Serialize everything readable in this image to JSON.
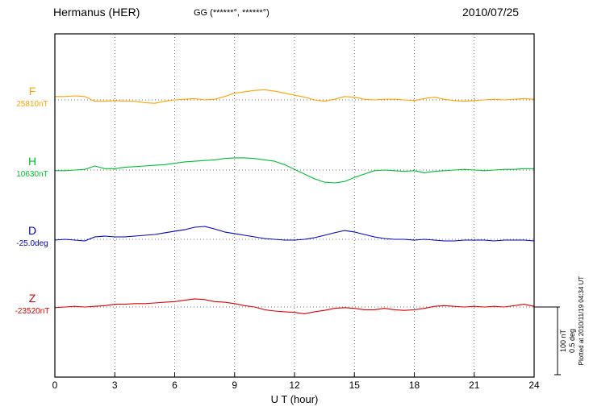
{
  "chart_data": {
    "type": "line",
    "station": "Hermanus (HER)",
    "coordinates": "GG (******°, ******°)",
    "date": "2010/07/25",
    "xlabel": "U T (hour)",
    "x_ticks": [
      0,
      3,
      6,
      9,
      12,
      15,
      18,
      21,
      24
    ],
    "x_range": [
      0,
      24
    ],
    "x_step_hours": 0.5,
    "grid": "dotted vertical gridlines at 3h ticks; dotted horizontal baseline per component",
    "legend_position": "left",
    "scale_bar": {
      "label_lines": [
        "100 nT",
        "0.5 deg"
      ],
      "nT_per_bar": 100,
      "deg_per_bar": 0.5
    },
    "plotted_at": "Plotted at 2010/11/19 04:34 UT",
    "series": [
      {
        "name": "F",
        "color": "#FFA500",
        "baseline_label": "25810nT",
        "baseline_value": 25810,
        "unit": "nT",
        "units_per_scale": 100,
        "values": [
          5,
          5,
          6,
          5,
          -2,
          -2,
          -1,
          -2,
          -2,
          -4,
          -5,
          -2,
          0,
          1,
          2,
          0,
          1,
          5,
          10,
          12,
          14,
          15,
          13,
          10,
          7,
          4,
          0,
          -2,
          1,
          5,
          4,
          1,
          0,
          1,
          1,
          0,
          -1,
          2,
          4,
          1,
          -1,
          -2,
          -1,
          0,
          1,
          0,
          1,
          2,
          1
        ]
      },
      {
        "name": "H",
        "color": "#00BE32",
        "baseline_label": "10630nT",
        "baseline_value": 10630,
        "unit": "nT",
        "units_per_scale": 100,
        "values": [
          -1,
          -1,
          0,
          1,
          6,
          2,
          2,
          4,
          5,
          6,
          7,
          8,
          10,
          12,
          13,
          14,
          15,
          17,
          18,
          18,
          17,
          15,
          13,
          8,
          1,
          -6,
          -13,
          -18,
          -19,
          -17,
          -11,
          -6,
          -1,
          0,
          -1,
          -2,
          -1,
          -4,
          -2,
          -1,
          0,
          1,
          0,
          -1,
          0,
          1,
          1,
          2,
          2
        ]
      },
      {
        "name": "D",
        "color": "#0000CC",
        "baseline_label": "-25.0deg",
        "baseline_value": -25.0,
        "unit": "deg",
        "units_per_scale": 0.5,
        "values": [
          -0.006,
          0.0,
          -0.006,
          -0.012,
          0.018,
          0.024,
          0.018,
          0.018,
          0.024,
          0.03,
          0.036,
          0.048,
          0.06,
          0.071,
          0.089,
          0.095,
          0.077,
          0.054,
          0.042,
          0.03,
          0.018,
          0.006,
          0.0,
          -0.006,
          -0.006,
          0.0,
          0.012,
          0.03,
          0.048,
          0.065,
          0.054,
          0.036,
          0.018,
          0.006,
          0.0,
          0.0,
          -0.006,
          0.0,
          -0.006,
          -0.012,
          -0.012,
          -0.006,
          -0.006,
          -0.006,
          -0.012,
          -0.006,
          -0.006,
          -0.006,
          -0.012
        ]
      },
      {
        "name": "Z",
        "color": "#E00000",
        "baseline_label": "-23520nT",
        "baseline_value": -23520,
        "unit": "nT",
        "units_per_scale": 100,
        "values": [
          -1,
          0,
          1,
          0,
          1,
          2,
          4,
          4,
          5,
          5,
          6,
          7,
          8,
          10,
          12,
          11,
          8,
          7,
          5,
          2,
          0,
          -4,
          -6,
          -7,
          -8,
          -10,
          -7,
          -5,
          -2,
          -1,
          -2,
          -4,
          -4,
          -2,
          -4,
          -5,
          -4,
          -2,
          1,
          2,
          1,
          0,
          1,
          0,
          1,
          0,
          2,
          4,
          1
        ]
      }
    ]
  }
}
